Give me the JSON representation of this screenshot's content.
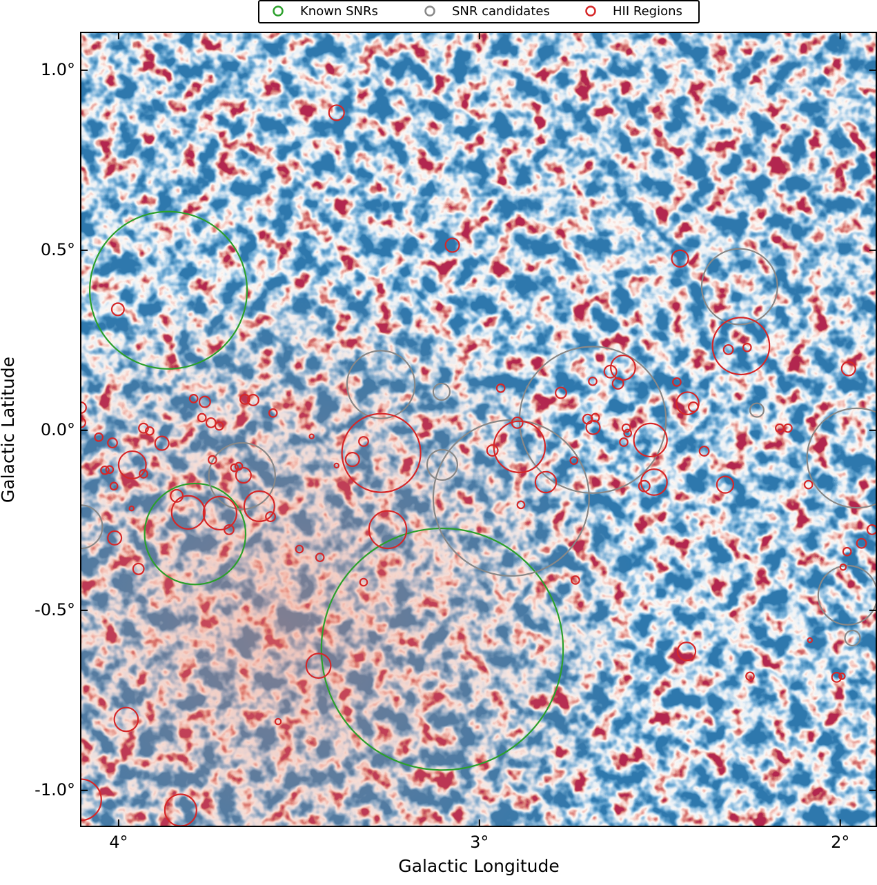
{
  "chart_data": {
    "type": "sky-map",
    "x_label": "Galactic Longitude",
    "y_label": "Galactic Latitude",
    "xlim": [
      4.105,
      1.9
    ],
    "ylim": [
      -1.1,
      1.105
    ],
    "xticks": [
      {
        "value": 4,
        "label": "4°"
      },
      {
        "value": 3,
        "label": "3°"
      },
      {
        "value": 2,
        "label": "2°"
      }
    ],
    "yticks": [
      {
        "value": 1.0,
        "label": "1.0°"
      },
      {
        "value": 0.5,
        "label": "0.5°"
      },
      {
        "value": 0.0,
        "label": "0.0°"
      },
      {
        "value": -0.5,
        "label": "-0.5°"
      },
      {
        "value": -1.0,
        "label": "-1.0°"
      }
    ],
    "legend": "top-outside",
    "series": [
      {
        "name": "Known SNRs",
        "color": "#2ca02c",
        "x": [
          3.862,
          3.788,
          3.103
        ],
        "y": [
          0.389,
          -0.288,
          -0.608
        ],
        "r": [
          0.218,
          0.14,
          0.335
        ]
      },
      {
        "name": "SNR candidates",
        "color": "#888888",
        "x": [
          3.273,
          3.105,
          3.658,
          3.103,
          2.912,
          2.686,
          2.279,
          2.231,
          1.954,
          1.979,
          1.966,
          4.105
        ],
        "y": [
          0.127,
          0.107,
          -0.127,
          -0.096,
          -0.188,
          0.029,
          0.399,
          0.056,
          -0.077,
          -0.458,
          -0.577,
          -0.268
        ],
        "r": [
          0.094,
          0.023,
          0.092,
          0.042,
          0.216,
          0.203,
          0.105,
          0.019,
          0.138,
          0.082,
          0.021,
          0.06
        ]
      },
      {
        "name": "HII Regions",
        "color": "#d62728",
        "x": [
          3.396,
          3.075,
          2.444,
          4.002,
          2.275,
          2.31,
          2.258,
          1.977,
          2.602,
          2.637,
          2.616,
          2.686,
          2.774,
          2.941,
          2.453,
          2.423,
          2.407,
          3.272,
          3.321,
          3.352,
          2.889,
          2.895,
          2.964,
          2.816,
          2.885,
          2.7,
          2.679,
          2.685,
          2.738,
          2.526,
          2.593,
          2.589,
          2.6,
          2.516,
          2.543,
          2.377,
          2.319,
          2.168,
          2.145,
          2.088,
          1.912,
          1.941,
          1.981,
          1.992,
          2.084,
          2.426,
          2.25,
          2.01,
          1.995,
          2.734,
          3.254,
          3.321,
          3.442,
          3.499,
          3.446,
          3.558,
          3.979,
          3.828,
          4.105,
          3.962,
          3.931,
          3.88,
          3.931,
          3.914,
          4.017,
          4.055,
          4.038,
          4.025,
          4.013,
          3.964,
          4.011,
          3.945,
          4.105,
          4.105,
          3.792,
          3.761,
          3.769,
          3.744,
          3.721,
          3.65,
          3.627,
          3.572,
          3.465,
          3.396,
          3.74,
          3.679,
          3.667,
          3.654,
          3.839,
          3.807,
          3.719,
          3.694,
          3.61,
          3.579
        ],
        "y": [
          0.882,
          0.514,
          0.477,
          0.336,
          0.234,
          0.224,
          0.23,
          0.171,
          0.174,
          0.163,
          0.13,
          0.136,
          0.104,
          0.117,
          0.134,
          0.075,
          0.065,
          -0.063,
          -0.031,
          -0.081,
          -0.046,
          0.021,
          -0.056,
          -0.144,
          -0.207,
          0.031,
          0.035,
          0.008,
          -0.084,
          -0.027,
          0.006,
          -0.008,
          -0.033,
          -0.144,
          -0.155,
          -0.058,
          -0.151,
          0.006,
          0.006,
          -0.151,
          -0.276,
          -0.314,
          -0.337,
          -0.38,
          -0.583,
          -0.614,
          -0.683,
          -0.686,
          -0.683,
          -0.416,
          -0.276,
          -0.422,
          -0.353,
          -0.33,
          -0.654,
          -0.809,
          -0.803,
          -1.055,
          -1.026,
          -0.096,
          -0.121,
          -0.036,
          0.006,
          -0.002,
          -0.035,
          -0.019,
          -0.111,
          -0.109,
          -0.155,
          -0.217,
          -0.299,
          -0.385,
          0.063,
          0.021,
          0.088,
          0.079,
          0.035,
          0.021,
          0.012,
          0.086,
          0.084,
          0.048,
          -0.017,
          -0.098,
          -0.082,
          -0.104,
          -0.1,
          -0.125,
          -0.182,
          -0.228,
          -0.23,
          -0.276,
          -0.211,
          -0.24
        ],
        "r": [
          0.021,
          0.019,
          0.023,
          0.017,
          0.079,
          0.013,
          0.011,
          0.019,
          0.034,
          0.017,
          0.015,
          0.011,
          0.015,
          0.011,
          0.011,
          0.031,
          0.013,
          0.109,
          0.013,
          0.019,
          0.071,
          0.015,
          0.015,
          0.029,
          0.01,
          0.013,
          0.011,
          0.019,
          0.01,
          0.046,
          0.011,
          0.01,
          0.011,
          0.036,
          0.015,
          0.013,
          0.023,
          0.011,
          0.011,
          0.011,
          0.013,
          0.013,
          0.011,
          0.008,
          0.006,
          0.025,
          0.011,
          0.013,
          0.008,
          0.011,
          0.052,
          0.01,
          0.011,
          0.01,
          0.034,
          0.008,
          0.033,
          0.044,
          0.057,
          0.038,
          0.011,
          0.019,
          0.013,
          0.011,
          0.013,
          0.011,
          0.011,
          0.01,
          0.01,
          0.006,
          0.019,
          0.015,
          0.015,
          0.013,
          0.011,
          0.015,
          0.011,
          0.013,
          0.011,
          0.013,
          0.015,
          0.011,
          0.006,
          0.006,
          0.011,
          0.01,
          0.01,
          0.021,
          0.017,
          0.046,
          0.046,
          0.013,
          0.042,
          0.013
        ]
      }
    ]
  }
}
